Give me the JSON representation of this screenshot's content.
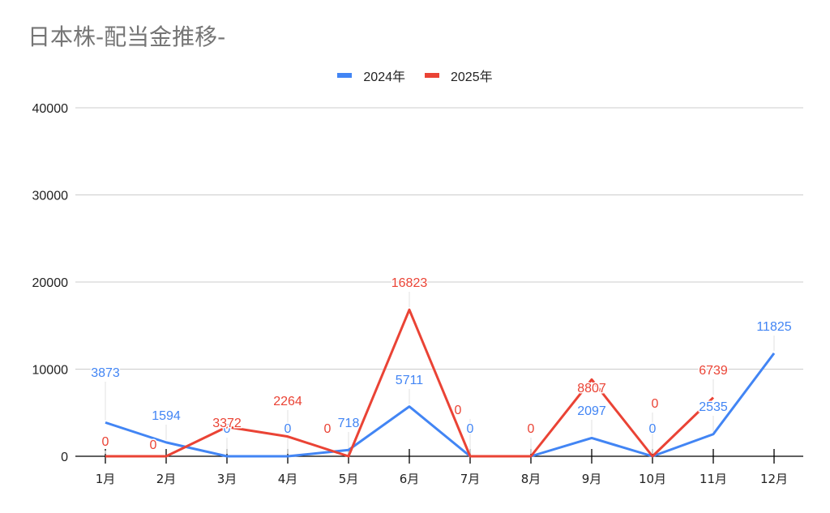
{
  "title": "日本株-配当金推移-",
  "legend": [
    {
      "label": "2024年",
      "color": "#4285F4"
    },
    {
      "label": "2025年",
      "color": "#EA4335"
    }
  ],
  "y_axis": {
    "ticks": [
      "0",
      "10000",
      "20000",
      "30000",
      "40000"
    ]
  },
  "x_axis": {
    "ticks": [
      "1月",
      "2月",
      "3月",
      "4月",
      "5月",
      "6月",
      "7月",
      "8月",
      "9月",
      "10月",
      "11月",
      "12月"
    ]
  },
  "chart_data": {
    "type": "line",
    "title": "日本株-配当金推移-",
    "xlabel": "",
    "ylabel": "",
    "categories": [
      "1月",
      "2月",
      "3月",
      "4月",
      "5月",
      "6月",
      "7月",
      "8月",
      "9月",
      "10月",
      "11月",
      "12月"
    ],
    "series": [
      {
        "name": "2024年",
        "color": "#4285F4",
        "values": [
          3873,
          1594,
          0,
          0,
          718,
          5711,
          0,
          0,
          2097,
          0,
          2535,
          11825
        ]
      },
      {
        "name": "2025年",
        "color": "#EA4335",
        "values": [
          0,
          0,
          3372,
          2264,
          0,
          16823,
          0,
          0,
          8807,
          0,
          6739,
          null
        ]
      }
    ],
    "ylim": [
      0,
      40000
    ],
    "yticks": [
      0,
      10000,
      20000,
      30000,
      40000
    ],
    "grid": true,
    "legend_position": "top",
    "data_labels": true
  }
}
